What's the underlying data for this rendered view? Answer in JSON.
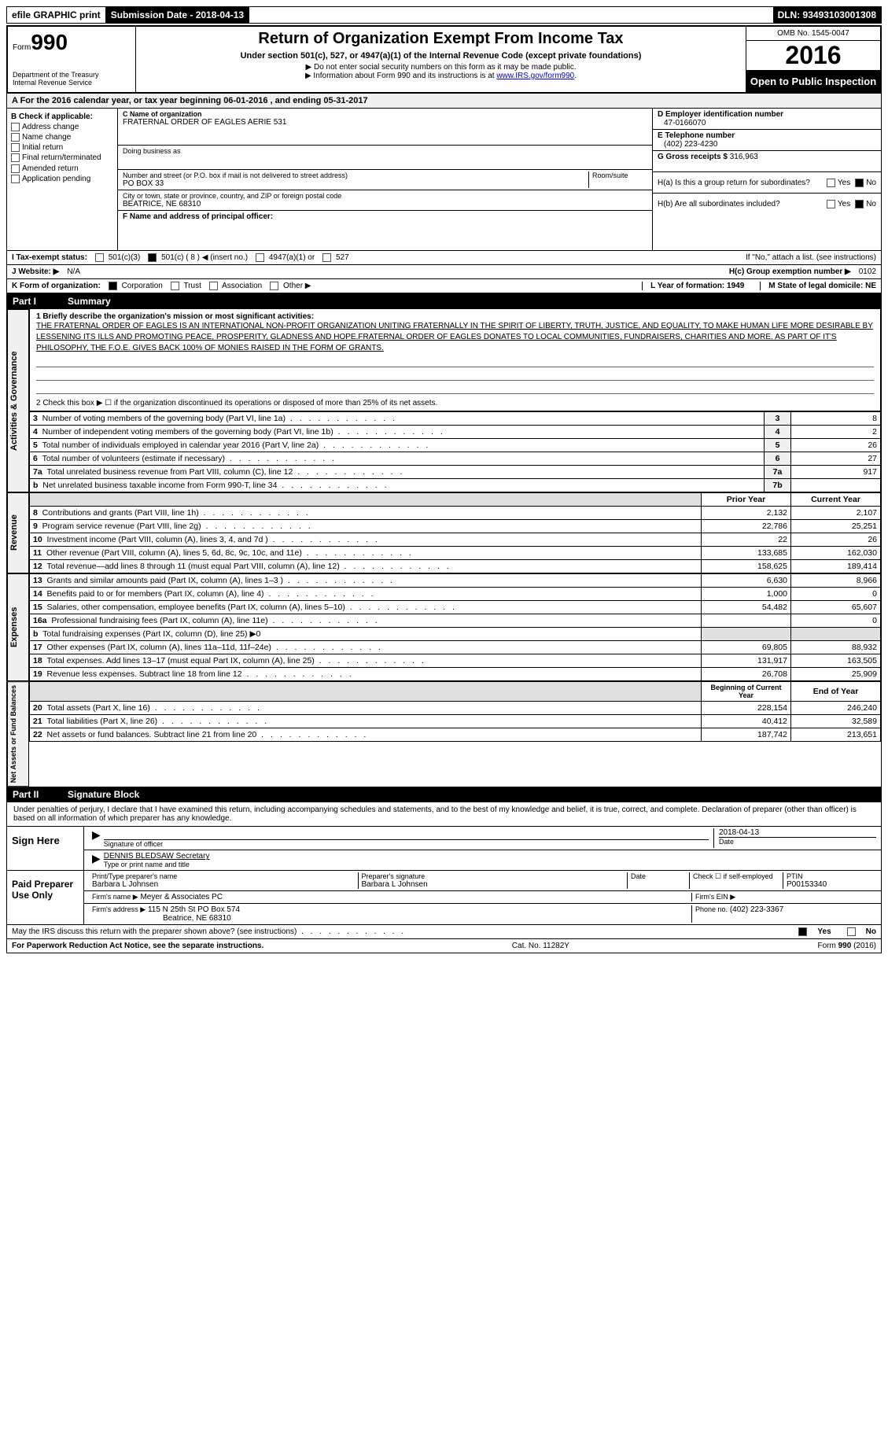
{
  "top_bar": {
    "efile": "efile GRAPHIC print",
    "submission": "Submission Date - 2018-04-13",
    "dln": "DLN: 93493103001308"
  },
  "header": {
    "form_label": "Form",
    "form_num": "990",
    "dept1": "Department of the Treasury",
    "dept2": "Internal Revenue Service",
    "title": "Return of Organization Exempt From Income Tax",
    "subtitle": "Under section 501(c), 527, or 4947(a)(1) of the Internal Revenue Code (except private foundations)",
    "note1": "▶ Do not enter social security numbers on this form as it may be made public.",
    "note2_pre": "▶ Information about Form 990 and its instructions is at ",
    "note2_link": "www.IRS.gov/form990",
    "omb": "OMB No. 1545-0047",
    "year": "2016",
    "public": "Open to Public Inspection"
  },
  "section_a": "A  For the 2016 calendar year, or tax year beginning 06-01-2016   , and ending 05-31-2017",
  "col_b": {
    "header": "B Check if applicable:",
    "items": [
      "Address change",
      "Name change",
      "Initial return",
      "Final return/terminated",
      "Amended return",
      "Application pending"
    ]
  },
  "col_c": {
    "name_label": "C Name of organization",
    "name": "FRATERNAL ORDER OF EAGLES AERIE 531",
    "dba_label": "Doing business as",
    "addr_label": "Number and street (or P.O. box if mail is not delivered to street address)",
    "room_label": "Room/suite",
    "addr": "PO BOX 33",
    "city_label": "City or town, state or province, country, and ZIP or foreign postal code",
    "city": "BEATRICE, NE  68310",
    "f_label": "F Name and address of principal officer:"
  },
  "col_d": {
    "ein_label": "D Employer identification number",
    "ein": "47-0166070",
    "tel_label": "E Telephone number",
    "tel": "(402) 223-4230",
    "gross_label": "G Gross receipts $",
    "gross": "316,963",
    "ha": "H(a)  Is this a group return for subordinates?",
    "hb": "H(b)  Are all subordinates included?",
    "hb_note": "If \"No,\" attach a list. (see instructions)",
    "hc": "H(c)  Group exemption number ▶",
    "hc_val": "0102"
  },
  "row_i": "I  Tax-exempt status:",
  "row_i_opts": [
    "501(c)(3)",
    "501(c) ( 8 ) ◀ (insert no.)",
    "4947(a)(1) or",
    "527"
  ],
  "row_j": "J  Website: ▶",
  "row_j_val": "N/A",
  "row_k": "K Form of organization:",
  "row_k_opts": [
    "Corporation",
    "Trust",
    "Association",
    "Other ▶"
  ],
  "row_l": "L Year of formation: 1949",
  "row_m": "M State of legal domicile: NE",
  "part1": {
    "label": "Part I",
    "title": "Summary"
  },
  "mission_label": "1 Briefly describe the organization's mission or most significant activities:",
  "mission": "THE FRATERNAL ORDER OF EAGLES IS AN INTERNATIONAL NON-PROFIT ORGANIZATION UNITING FRATERNALLY IN THE SPIRIT OF LIBERTY, TRUTH, JUSTICE, AND EQUALITY, TO MAKE HUMAN LIFE MORE DESIRABLE BY LESSENING ITS ILLS AND PROMOTING PEACE, PROSPERITY, GLADNESS AND HOPE.FRATERNAL ORDER OF EAGLES DONATES TO LOCAL COMMUNITIES, FUNDRAISERS, CHARITIES AND MORE. AS PART OF IT'S PHILOSOPHY, THE F.O.E. GIVES BACK 100% OF MONIES RAISED IN THE FORM OF GRANTS.",
  "line2": "2   Check this box ▶ ☐  if the organization discontinued its operations or disposed of more than 25% of its net assets.",
  "gov_side": "Activities & Governance",
  "gov_rows": [
    {
      "n": "3",
      "d": "Number of voting members of the governing body (Part VI, line 1a)",
      "c": "3",
      "v": "8"
    },
    {
      "n": "4",
      "d": "Number of independent voting members of the governing body (Part VI, line 1b)",
      "c": "4",
      "v": "2"
    },
    {
      "n": "5",
      "d": "Total number of individuals employed in calendar year 2016 (Part V, line 2a)",
      "c": "5",
      "v": "26"
    },
    {
      "n": "6",
      "d": "Total number of volunteers (estimate if necessary)",
      "c": "6",
      "v": "27"
    },
    {
      "n": "7a",
      "d": "Total unrelated business revenue from Part VIII, column (C), line 12",
      "c": "7a",
      "v": "917"
    },
    {
      "n": "b",
      "d": "Net unrelated business taxable income from Form 990-T, line 34",
      "c": "7b",
      "v": ""
    }
  ],
  "rev_side": "Revenue",
  "rev_header": {
    "py": "Prior Year",
    "cy": "Current Year"
  },
  "rev_rows": [
    {
      "n": "8",
      "d": "Contributions and grants (Part VIII, line 1h)",
      "py": "2,132",
      "cy": "2,107"
    },
    {
      "n": "9",
      "d": "Program service revenue (Part VIII, line 2g)",
      "py": "22,786",
      "cy": "25,251"
    },
    {
      "n": "10",
      "d": "Investment income (Part VIII, column (A), lines 3, 4, and 7d )",
      "py": "22",
      "cy": "26"
    },
    {
      "n": "11",
      "d": "Other revenue (Part VIII, column (A), lines 5, 6d, 8c, 9c, 10c, and 11e)",
      "py": "133,685",
      "cy": "162,030"
    },
    {
      "n": "12",
      "d": "Total revenue—add lines 8 through 11 (must equal Part VIII, column (A), line 12)",
      "py": "158,625",
      "cy": "189,414"
    }
  ],
  "exp_side": "Expenses",
  "exp_rows": [
    {
      "n": "13",
      "d": "Grants and similar amounts paid (Part IX, column (A), lines 1–3 )",
      "py": "6,630",
      "cy": "8,966"
    },
    {
      "n": "14",
      "d": "Benefits paid to or for members (Part IX, column (A), line 4)",
      "py": "1,000",
      "cy": "0"
    },
    {
      "n": "15",
      "d": "Salaries, other compensation, employee benefits (Part IX, column (A), lines 5–10)",
      "py": "54,482",
      "cy": "65,607"
    },
    {
      "n": "16a",
      "d": "Professional fundraising fees (Part IX, column (A), line 11e)",
      "py": "",
      "cy": "0"
    },
    {
      "n": "b",
      "d": "Total fundraising expenses (Part IX, column (D), line 25) ▶0",
      "py": "—shade—",
      "cy": "—shade—"
    },
    {
      "n": "17",
      "d": "Other expenses (Part IX, column (A), lines 11a–11d, 11f–24e)",
      "py": "69,805",
      "cy": "88,932"
    },
    {
      "n": "18",
      "d": "Total expenses. Add lines 13–17 (must equal Part IX, column (A), line 25)",
      "py": "131,917",
      "cy": "163,505"
    },
    {
      "n": "19",
      "d": "Revenue less expenses. Subtract line 18 from line 12",
      "py": "26,708",
      "cy": "25,909"
    }
  ],
  "net_side": "Net Assets or Fund Balances",
  "net_header": {
    "py": "Beginning of Current Year",
    "cy": "End of Year"
  },
  "net_rows": [
    {
      "n": "20",
      "d": "Total assets (Part X, line 16)",
      "py": "228,154",
      "cy": "246,240"
    },
    {
      "n": "21",
      "d": "Total liabilities (Part X, line 26)",
      "py": "40,412",
      "cy": "32,589"
    },
    {
      "n": "22",
      "d": "Net assets or fund balances. Subtract line 21 from line 20",
      "py": "187,742",
      "cy": "213,651"
    }
  ],
  "part2": {
    "label": "Part II",
    "title": "Signature Block"
  },
  "perjury": "Under penalties of perjury, I declare that I have examined this return, including accompanying schedules and statements, and to the best of my knowledge and belief, it is true, correct, and complete. Declaration of preparer (other than officer) is based on all information of which preparer has any knowledge.",
  "sign": {
    "here": "Sign Here",
    "sig_label": "Signature of officer",
    "date": "2018-04-13",
    "date_label": "Date",
    "name_under": "DENNIS BLEDSAW Secretary",
    "type_label": "Type or print name and title"
  },
  "preparer": {
    "label": "Paid Preparer Use Only",
    "print_label": "Print/Type preparer's name",
    "print_name": "Barbara L Johnsen",
    "sig_label": "Preparer's signature",
    "sig_name": "Barbara L Johnsen",
    "date_label": "Date",
    "check_label": "Check ☐ if self-employed",
    "ptin_label": "PTIN",
    "ptin": "P00153340",
    "firm_name_label": "Firm's name     ▶",
    "firm_name": "Meyer & Associates PC",
    "firm_ein_label": "Firm's EIN ▶",
    "firm_addr_label": "Firm's address ▶",
    "firm_addr1": "115 N 25th St PO Box 574",
    "firm_addr2": "Beatrice, NE  68310",
    "phone_label": "Phone no.",
    "phone": "(402) 223-3367"
  },
  "discuss": "May the IRS discuss this return with the preparer shown above? (see instructions)",
  "yesno": {
    "yes": "Yes",
    "no": "No"
  },
  "footer": {
    "pra": "For Paperwork Reduction Act Notice, see the separate instructions.",
    "cat": "Cat. No. 11282Y",
    "form": "Form 990 (2016)"
  }
}
